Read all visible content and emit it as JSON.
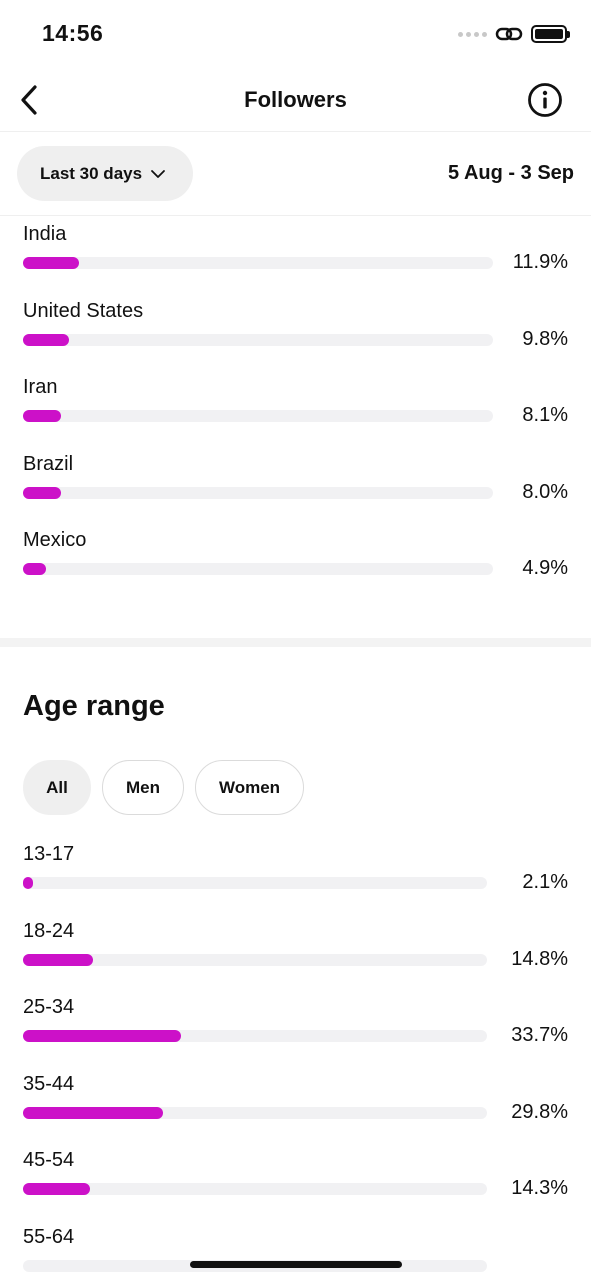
{
  "status_bar": {
    "time": "14:56"
  },
  "nav": {
    "title": "Followers"
  },
  "filter": {
    "range_label": "Last 30 days",
    "date_range": "5 Aug - 3 Sep"
  },
  "top_locations": [
    {
      "label": "India",
      "value": "11.9%",
      "fraction": 0.119
    },
    {
      "label": "United States",
      "value": "9.8%",
      "fraction": 0.098
    },
    {
      "label": "Iran",
      "value": "8.1%",
      "fraction": 0.081
    },
    {
      "label": "Brazil",
      "value": "8.0%",
      "fraction": 0.08
    },
    {
      "label": "Mexico",
      "value": "4.9%",
      "fraction": 0.049
    }
  ],
  "age_range": {
    "title": "Age range",
    "chips": [
      {
        "label": "All",
        "selected": true
      },
      {
        "label": "Men",
        "selected": false
      },
      {
        "label": "Women",
        "selected": false
      }
    ],
    "rows": [
      {
        "label": "13-17",
        "value": "2.1%",
        "fraction": 0.021
      },
      {
        "label": "18-24",
        "value": "14.8%",
        "fraction": 0.148
      },
      {
        "label": "25-34",
        "value": "33.7%",
        "fraction": 0.337
      },
      {
        "label": "35-44",
        "value": "29.8%",
        "fraction": 0.298
      },
      {
        "label": "45-54",
        "value": "14.3%",
        "fraction": 0.143
      },
      {
        "label": "55-64",
        "value": "",
        "fraction": 0
      }
    ]
  },
  "colors": {
    "bar_fill": "#cc11c8",
    "bar_track": "#f1f1f3"
  },
  "icons": {
    "back": "chevron-left-icon",
    "info": "info-icon",
    "dropdown": "chevron-down-icon"
  }
}
